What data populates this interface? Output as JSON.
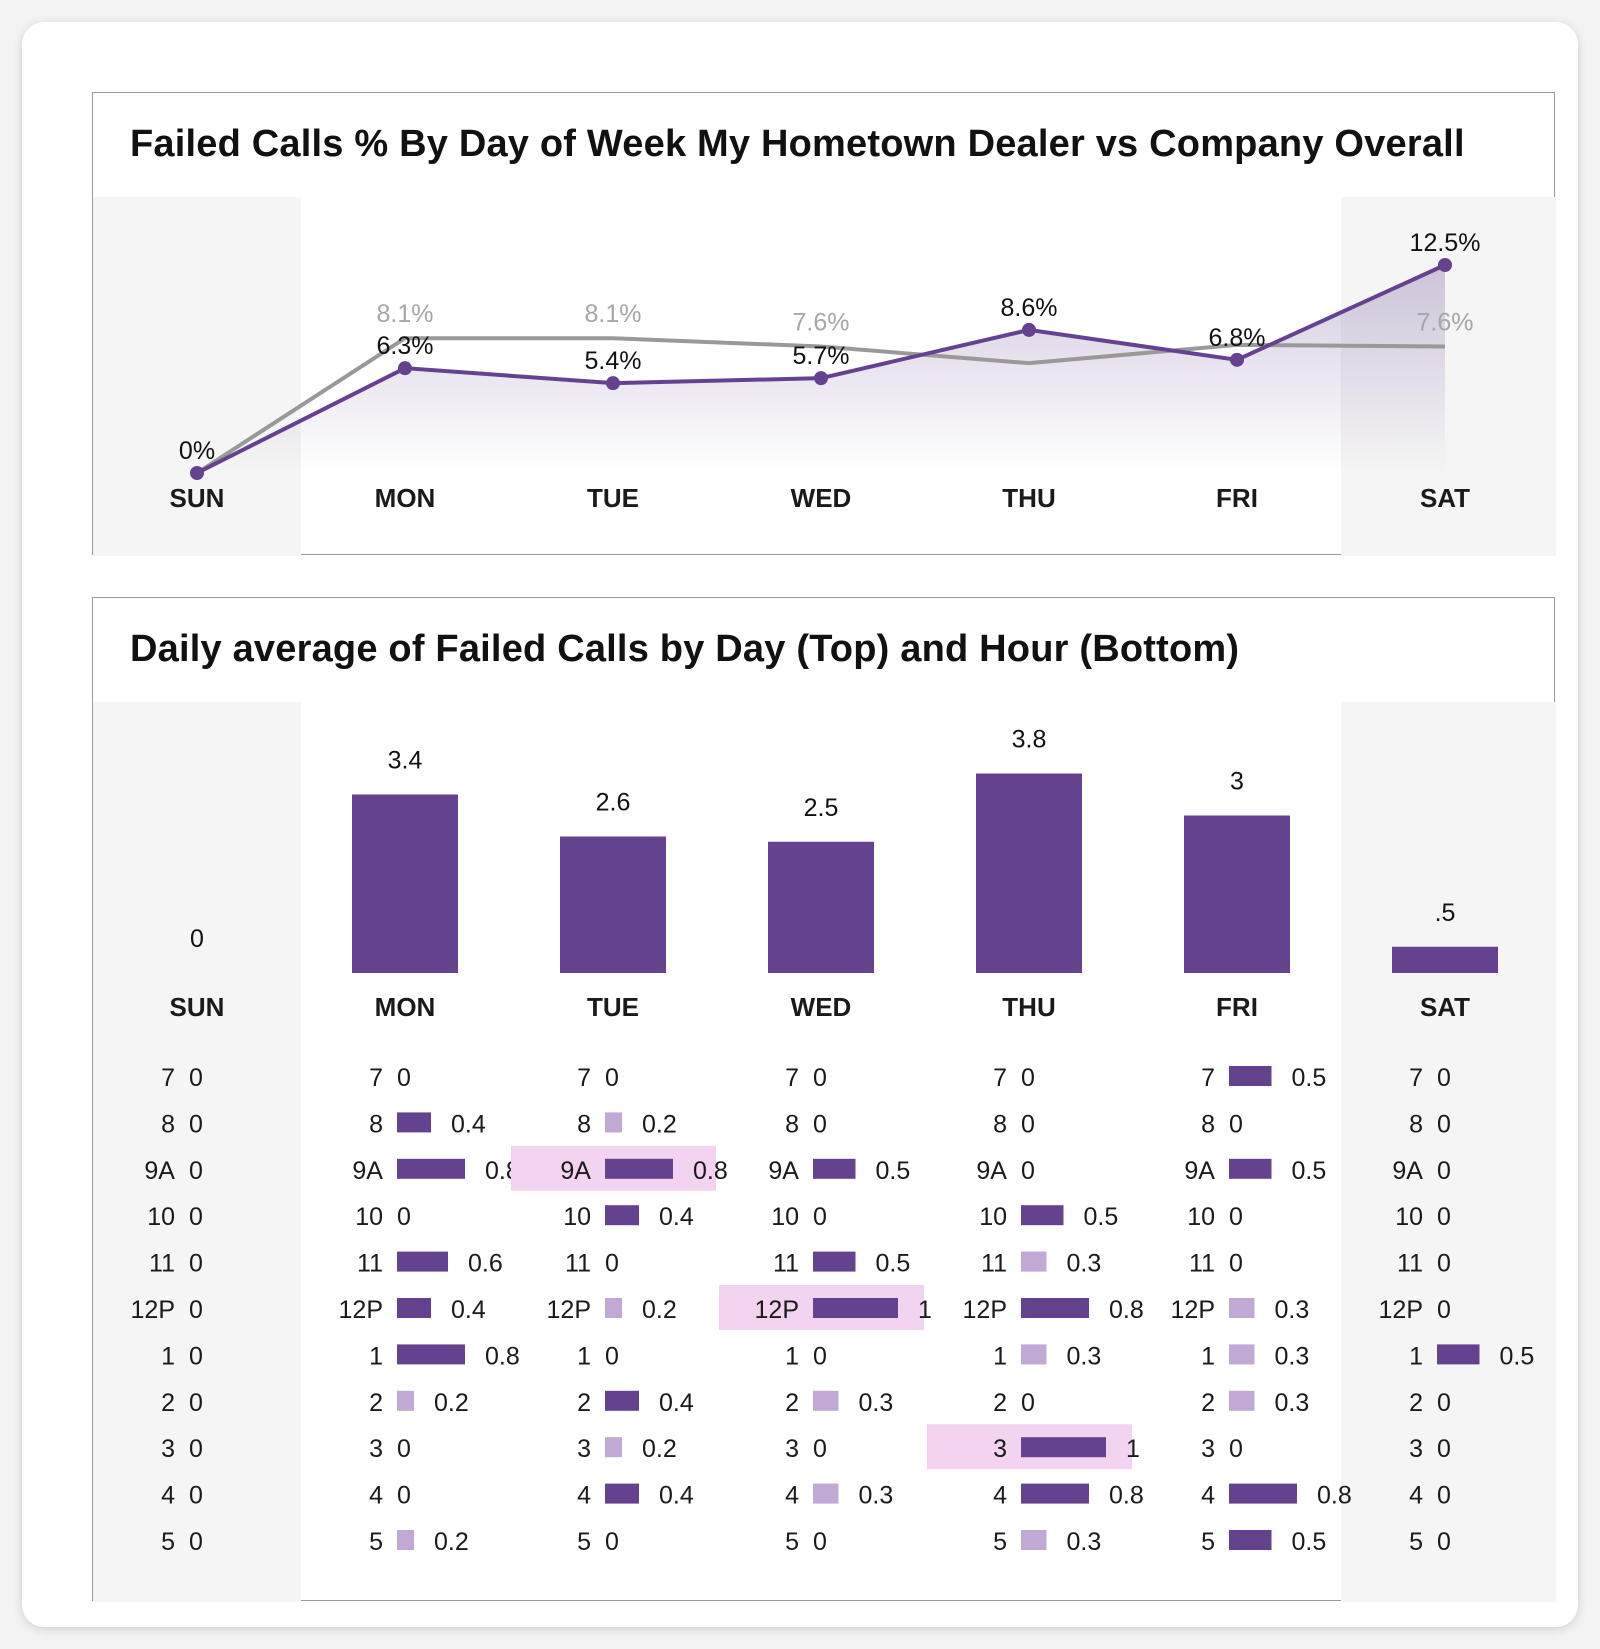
{
  "top_panel": {
    "title": "Failed Calls % By Day of Week My Hometown Dealer vs Company Overall"
  },
  "bottom_panel": {
    "title": "Daily average of Failed Calls by Day (Top) and Hour (Bottom)"
  },
  "colors": {
    "primary": "#65428f",
    "light": "#c2a9d5",
    "company_line": "#999999",
    "highlight": "#f3d4f0",
    "weekend_bg": "#f5f5f5"
  },
  "chart_data": [
    {
      "type": "line",
      "title": "Failed Calls % By Day of Week My Hometown Dealer vs Company Overall",
      "categories": [
        "SUN",
        "MON",
        "TUE",
        "WED",
        "THU",
        "FRI",
        "SAT"
      ],
      "series": [
        {
          "values": [
            0,
            6.3,
            5.4,
            5.7,
            8.6,
            6.8,
            12.5
          ],
          "labels": [
            "0%",
            "6.3%",
            "5.4%",
            "5.7%",
            "8.6%",
            "6.8%",
            "12.5%"
          ]
        },
        {
          "values": [
            0,
            8.1,
            8.1,
            7.6,
            6.6,
            7.7,
            7.6
          ],
          "labels": [
            "",
            "8.1%",
            "8.1%",
            "7.6%",
            "",
            "",
            "7.6%"
          ]
        }
      ],
      "ylim": [
        0,
        14
      ],
      "grid": false,
      "weekend_shaded": true
    },
    {
      "type": "bar",
      "title": "Daily average of Failed Calls by Day (Top) and Hour (Bottom)",
      "categories": [
        "SUN",
        "MON",
        "TUE",
        "WED",
        "THU",
        "FRI",
        "SAT"
      ],
      "values": [
        0,
        3.4,
        2.6,
        2.5,
        3.8,
        3,
        0.5
      ],
      "labels": [
        "0",
        "3.4",
        "2.6",
        "2.5",
        "3.8",
        "3",
        ".5"
      ],
      "ylim": [
        0,
        4
      ]
    },
    {
      "type": "table",
      "hours": [
        "7",
        "8",
        "9A",
        "10",
        "11",
        "12P",
        "1",
        "2",
        "3",
        "4",
        "5"
      ],
      "days": [
        "SUN",
        "MON",
        "TUE",
        "WED",
        "THU",
        "FRI",
        "SAT"
      ],
      "values": [
        [
          0,
          0,
          0,
          0,
          0,
          0,
          0,
          0,
          0,
          0,
          0
        ],
        [
          0,
          0.4,
          0.8,
          0,
          0.6,
          0.4,
          0.8,
          0.2,
          0,
          0,
          0.2
        ],
        [
          0,
          0.2,
          0.8,
          0.4,
          0,
          0.2,
          0,
          0.4,
          0.2,
          0.4,
          0
        ],
        [
          0,
          0,
          0.5,
          0,
          0.5,
          1,
          0,
          0.3,
          0,
          0.3,
          0
        ],
        [
          0,
          0,
          0,
          0.5,
          0.3,
          0.8,
          0.3,
          0,
          1,
          0.8,
          0.3
        ],
        [
          0.5,
          0,
          0.5,
          0,
          0,
          0.3,
          0.3,
          0.3,
          0,
          0.8,
          0.5
        ],
        [
          0,
          0,
          0,
          0,
          0,
          0,
          0.5,
          0,
          0,
          0,
          0
        ]
      ],
      "highlighted": [
        [
          2,
          2
        ],
        [
          3,
          5
        ],
        [
          4,
          8
        ]
      ]
    }
  ]
}
